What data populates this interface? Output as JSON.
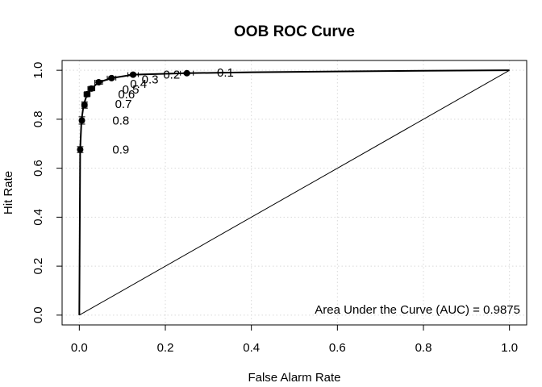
{
  "chart_data": {
    "type": "line",
    "title": "OOB ROC Curve",
    "xlabel": "False Alarm Rate",
    "ylabel": "Hit Rate",
    "xlim": [
      -0.04,
      1.04
    ],
    "ylim": [
      -0.04,
      1.04
    ],
    "xticks": [
      0.0,
      0.2,
      0.4,
      0.6,
      0.8,
      1.0
    ],
    "yticks": [
      0.0,
      0.2,
      0.4,
      0.6,
      0.8,
      1.0
    ],
    "xtick_labels": [
      "0.0",
      "0.2",
      "0.4",
      "0.6",
      "0.8",
      "1.0"
    ],
    "ytick_labels": [
      "0.0",
      "0.2",
      "0.4",
      "0.6",
      "0.8",
      "1.0"
    ],
    "grid": true,
    "curve": {
      "x": [
        0.0,
        0.002,
        0.005,
        0.01,
        0.018,
        0.028,
        0.045,
        0.075,
        0.125,
        0.25,
        0.4,
        0.6,
        0.8,
        1.0
      ],
      "y": [
        0.0,
        0.676,
        0.795,
        0.858,
        0.902,
        0.925,
        0.951,
        0.968,
        0.982,
        0.988,
        0.992,
        0.995,
        0.998,
        1.0
      ]
    },
    "thresholds": [
      {
        "label": "0.9",
        "x": 0.002,
        "y": 0.676,
        "err_y": 0.012,
        "err_x": 0.004,
        "label_x": 0.077,
        "label_y": 0.676
      },
      {
        "label": "0.8",
        "x": 0.006,
        "y": 0.795,
        "err_y": 0.015,
        "err_x": 0.005,
        "label_x": 0.077,
        "label_y": 0.795
      },
      {
        "label": "0.7",
        "x": 0.012,
        "y": 0.858,
        "err_y": 0.013,
        "err_x": 0.006,
        "label_x": 0.083,
        "label_y": 0.862
      },
      {
        "label": "0.6",
        "x": 0.018,
        "y": 0.902,
        "err_y": 0.01,
        "err_x": 0.007,
        "label_x": 0.09,
        "label_y": 0.902
      },
      {
        "label": "0.5",
        "x": 0.028,
        "y": 0.925,
        "err_y": 0.009,
        "err_x": 0.008,
        "label_x": 0.1,
        "label_y": 0.922
      },
      {
        "label": "0.4",
        "x": 0.045,
        "y": 0.951,
        "err_y": 0.008,
        "err_x": 0.009,
        "label_x": 0.118,
        "label_y": 0.944
      },
      {
        "label": "0.3",
        "x": 0.075,
        "y": 0.968,
        "err_y": 0.006,
        "err_x": 0.01,
        "label_x": 0.145,
        "label_y": 0.962
      },
      {
        "label": "0.2",
        "x": 0.125,
        "y": 0.982,
        "err_y": 0.005,
        "err_x": 0.012,
        "label_x": 0.195,
        "label_y": 0.982
      },
      {
        "label": "0.1",
        "x": 0.25,
        "y": 0.988,
        "err_y": 0.004,
        "err_x": 0.015,
        "label_x": 0.32,
        "label_y": 0.99
      }
    ],
    "diagonal": {
      "x": [
        0,
        1
      ],
      "y": [
        0,
        1
      ]
    },
    "annotation": "Area Under the Curve (AUC) = 0.9875"
  }
}
